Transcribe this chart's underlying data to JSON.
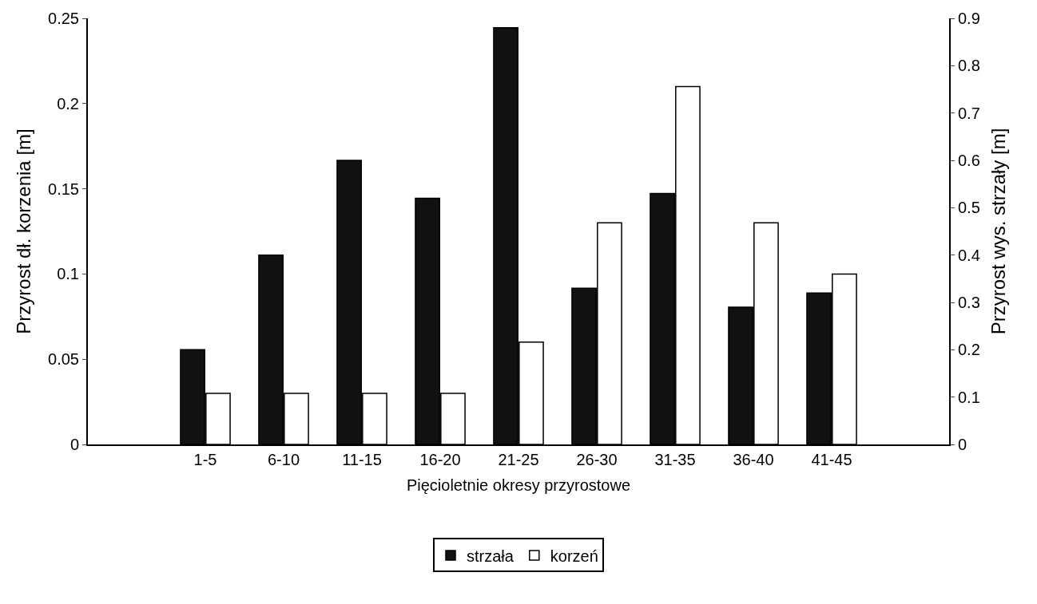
{
  "chart_data": {
    "type": "bar",
    "xlabel": "Pięcioletnie okresy przyrostowe",
    "ylabel": "Przyrost dł. korzenia [m]",
    "y2label": "Przyrost wys. strzały [m]",
    "categories": [
      null,
      "1-5",
      "6-10",
      "11-15",
      "16-20",
      "21-25",
      "26-30",
      "31-35",
      "36-40",
      "41-45",
      null
    ],
    "series": [
      {
        "name": "strzała",
        "color": "#111111",
        "axis": "y2",
        "values": [
          null,
          0.2,
          0.4,
          0.6,
          0.52,
          0.88,
          0.33,
          0.53,
          0.29,
          0.32,
          null
        ]
      },
      {
        "name": "korzeń",
        "color": "#ffffff",
        "axis": "y",
        "values": [
          null,
          0.03,
          0.03,
          0.03,
          0.03,
          0.06,
          0.13,
          0.21,
          0.13,
          0.1,
          null
        ]
      }
    ],
    "ylim": [
      0,
      0.25
    ],
    "yticks": [
      0,
      0.05,
      0.1,
      0.15,
      0.2,
      0.25
    ],
    "y2lim": [
      0,
      0.9
    ],
    "y2ticks": [
      0,
      0.1,
      0.2,
      0.3,
      0.4,
      0.5,
      0.6,
      0.7,
      0.8,
      0.9
    ],
    "legend": "bottom"
  }
}
